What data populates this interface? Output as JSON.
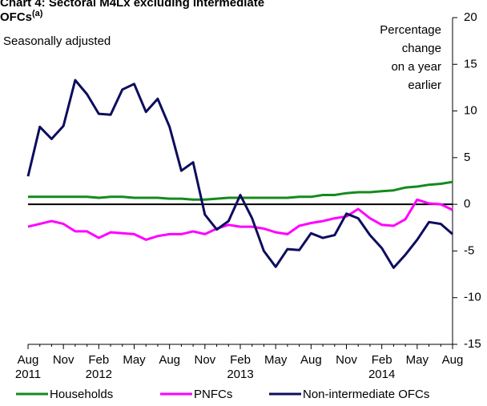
{
  "chart_data": {
    "type": "line",
    "title": "Chart 4: Sectoral M4Lx excluding intermediate OFCs",
    "title_note": "(a)",
    "subtitle": "Seasonally adjusted",
    "y_label": [
      "Percentage",
      "change",
      "on a year",
      "earlier"
    ],
    "categories": [
      "Aug",
      null,
      null,
      "Nov",
      null,
      null,
      "Feb",
      null,
      null,
      "May",
      null,
      null,
      "Aug",
      null,
      null,
      "Nov",
      null,
      null,
      "Feb",
      null,
      null,
      "May",
      null,
      null,
      "Aug",
      null,
      null,
      "Nov",
      null,
      null,
      "Feb",
      null,
      null,
      "May",
      null,
      null,
      "Aug"
    ],
    "years": [
      "2011",
      null,
      null,
      null,
      null,
      null,
      "2012",
      null,
      null,
      null,
      null,
      null,
      null,
      null,
      null,
      null,
      null,
      null,
      "2013",
      null,
      null,
      null,
      null,
      null,
      null,
      null,
      null,
      null,
      null,
      null,
      "2014",
      null,
      null,
      null,
      null,
      null,
      null
    ],
    "ylim": [
      -15,
      20
    ],
    "yticks": [
      -15,
      -10,
      -5,
      0,
      5,
      10,
      15,
      20
    ],
    "series": [
      {
        "name": "Households",
        "color": "#168a1e",
        "values": [
          0.8,
          0.8,
          0.8,
          0.8,
          0.8,
          0.8,
          0.7,
          0.8,
          0.8,
          0.7,
          0.7,
          0.7,
          0.6,
          0.6,
          0.5,
          0.5,
          0.6,
          0.7,
          0.7,
          0.7,
          0.7,
          0.7,
          0.7,
          0.8,
          0.8,
          1.0,
          1.0,
          1.2,
          1.3,
          1.3,
          1.4,
          1.5,
          1.8,
          1.9,
          2.1,
          2.2,
          2.4
        ]
      },
      {
        "name": "PNFCs",
        "color": "#ff00ff",
        "values": [
          -2.4,
          -2.1,
          -1.8,
          -2.1,
          -2.9,
          -2.9,
          -3.6,
          -3.0,
          -3.1,
          -3.2,
          -3.8,
          -3.4,
          -3.2,
          -3.2,
          -2.9,
          -3.2,
          -2.6,
          -2.2,
          -2.4,
          -2.4,
          -2.6,
          -3.0,
          -3.2,
          -2.3,
          -2.0,
          -1.8,
          -1.5,
          -1.3,
          -0.5,
          -1.5,
          -2.2,
          -2.3,
          -1.6,
          0.5,
          0.1,
          0.0,
          -0.6
        ]
      },
      {
        "name": "Non-intermediate OFCs",
        "color": "#0d0d5e",
        "values": [
          3.0,
          8.3,
          7.0,
          8.4,
          13.3,
          11.8,
          9.7,
          9.6,
          12.3,
          12.9,
          9.9,
          11.3,
          8.3,
          3.6,
          4.5,
          -1.1,
          -2.7,
          -1.8,
          1.0,
          -1.5,
          -5.0,
          -6.7,
          -4.8,
          -4.9,
          -3.1,
          -3.6,
          -3.3,
          -1.0,
          -1.5,
          -3.3,
          -4.7,
          -6.8,
          -5.4,
          -3.8,
          -1.9,
          -2.1,
          -3.2
        ]
      }
    ]
  }
}
